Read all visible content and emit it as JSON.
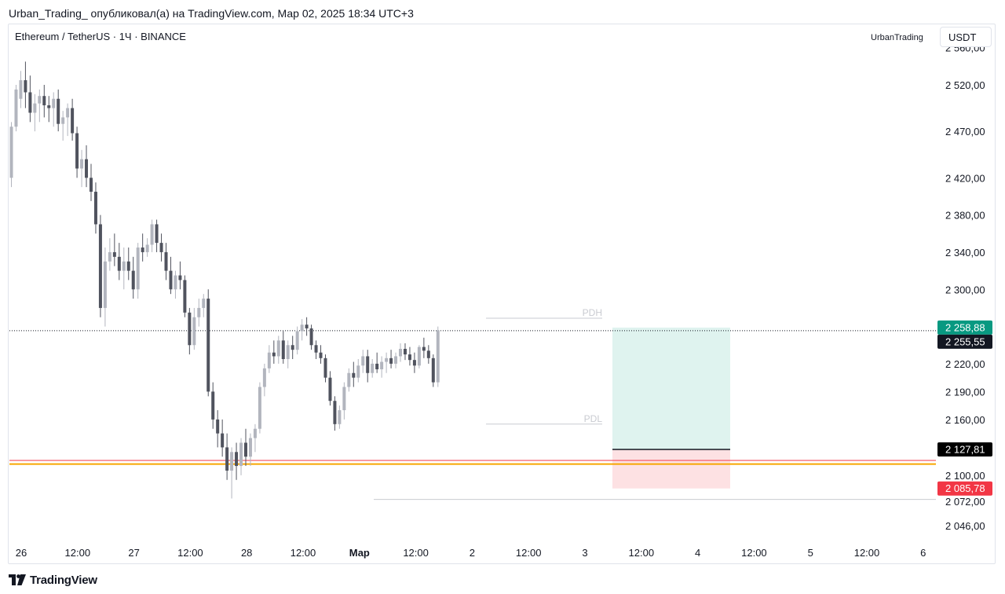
{
  "header": {
    "caption": "Urban_Trading_ опубликовал(а) на TradingView.com, Мар 02, 2025 18:34 UTC+3"
  },
  "chart_header": {
    "symbol": "Ethereum / TetherUS · 1Ч · BINANCE",
    "author": "UrbanTrading",
    "currency_button": "USDT"
  },
  "footer": {
    "logo_text": "TradingView"
  },
  "colors": {
    "up_candle": "#b2b5be",
    "down_candle": "#50535e",
    "profit_zone": "#dff3ef",
    "loss_zone": "#fde1e3",
    "entry_line": "#131722",
    "red_level": "#f23645",
    "orange_level": "#f7a600",
    "last_price_label": "#131722",
    "tp_label": "#089981",
    "sl_label": "#f23645",
    "entry_label": "#000000"
  },
  "chart_data": {
    "type": "candlestick",
    "symbol": "ETHUSDT",
    "interval": "1H",
    "y_ticks": [
      "2 560,00",
      "2 520,00",
      "2 470,00",
      "2 420,00",
      "2 380,00",
      "2 340,00",
      "2 300,00",
      "2 220,00",
      "2 190,00",
      "2 160,00",
      "2 100,00",
      "2 072,00",
      "2 046,00"
    ],
    "y_tick_values": [
      2560,
      2520,
      2470,
      2420,
      2380,
      2340,
      2300,
      2220,
      2190,
      2160,
      2100,
      2072,
      2046
    ],
    "x_ticks": [
      {
        "label": "26",
        "bold": false
      },
      {
        "label": "12:00",
        "bold": false
      },
      {
        "label": "27",
        "bold": false
      },
      {
        "label": "12:00",
        "bold": false
      },
      {
        "label": "28",
        "bold": false
      },
      {
        "label": "12:00",
        "bold": false
      },
      {
        "label": "Мар",
        "bold": true
      },
      {
        "label": "12:00",
        "bold": false
      },
      {
        "label": "2",
        "bold": false
      },
      {
        "label": "12:00",
        "bold": false
      },
      {
        "label": "3",
        "bold": false
      },
      {
        "label": "12:00",
        "bold": false
      },
      {
        "label": "4",
        "bold": false
      },
      {
        "label": "12:00",
        "bold": false
      },
      {
        "label": "5",
        "bold": false
      },
      {
        "label": "12:00",
        "bold": false
      },
      {
        "label": "6",
        "bold": false
      }
    ],
    "price_labels": [
      {
        "text": "2 258,88",
        "value": 2258.88,
        "role": "take_profit"
      },
      {
        "text": "2 255,55",
        "value": 2255.55,
        "role": "last_price"
      },
      {
        "text": "2 127,81",
        "value": 2127.81,
        "role": "entry"
      },
      {
        "text": "2 085,78",
        "value": 2085.78,
        "role": "stop_loss"
      }
    ],
    "levels": [
      {
        "name": "PDH",
        "value": 2269
      },
      {
        "name": "PDL",
        "value": 2155
      },
      {
        "name": "",
        "value": 2116,
        "role": "red_line"
      },
      {
        "name": "",
        "value": 2112,
        "role": "orange_line"
      },
      {
        "name": "",
        "value": 2074,
        "role": "low_line"
      }
    ],
    "position": {
      "type": "long",
      "take_profit": 2258.88,
      "entry": 2127.81,
      "stop_loss": 2085.78
    },
    "candles": [
      [
        2420,
        2480,
        2410,
        2475
      ],
      [
        2475,
        2520,
        2470,
        2515
      ],
      [
        2505,
        2535,
        2495,
        2525
      ],
      [
        2525,
        2545,
        2495,
        2512
      ],
      [
        2512,
        2530,
        2480,
        2490
      ],
      [
        2490,
        2510,
        2470,
        2500
      ],
      [
        2500,
        2515,
        2480,
        2508
      ],
      [
        2508,
        2520,
        2485,
        2498
      ],
      [
        2498,
        2508,
        2480,
        2495
      ],
      [
        2495,
        2512,
        2475,
        2505
      ],
      [
        2505,
        2515,
        2470,
        2478
      ],
      [
        2478,
        2492,
        2460,
        2485
      ],
      [
        2485,
        2500,
        2465,
        2495
      ],
      [
        2495,
        2505,
        2460,
        2468
      ],
      [
        2468,
        2475,
        2420,
        2430
      ],
      [
        2430,
        2450,
        2410,
        2440
      ],
      [
        2440,
        2455,
        2410,
        2420
      ],
      [
        2420,
        2435,
        2395,
        2405
      ],
      [
        2405,
        2415,
        2360,
        2370
      ],
      [
        2370,
        2380,
        2270,
        2280
      ],
      [
        2280,
        2345,
        2260,
        2330
      ],
      [
        2330,
        2355,
        2320,
        2340
      ],
      [
        2340,
        2360,
        2325,
        2335
      ],
      [
        2335,
        2350,
        2310,
        2320
      ],
      [
        2320,
        2345,
        2300,
        2330
      ],
      [
        2330,
        2345,
        2310,
        2320
      ],
      [
        2320,
        2335,
        2290,
        2300
      ],
      [
        2300,
        2350,
        2290,
        2345
      ],
      [
        2345,
        2360,
        2330,
        2340
      ],
      [
        2340,
        2355,
        2335,
        2348
      ],
      [
        2348,
        2375,
        2340,
        2370
      ],
      [
        2370,
        2375,
        2340,
        2350
      ],
      [
        2350,
        2360,
        2330,
        2340
      ],
      [
        2340,
        2350,
        2310,
        2320
      ],
      [
        2320,
        2335,
        2295,
        2300
      ],
      [
        2300,
        2320,
        2290,
        2315
      ],
      [
        2315,
        2330,
        2300,
        2310
      ],
      [
        2310,
        2315,
        2270,
        2275
      ],
      [
        2275,
        2280,
        2230,
        2240
      ],
      [
        2240,
        2280,
        2235,
        2270
      ],
      [
        2270,
        2290,
        2260,
        2280
      ],
      [
        2280,
        2295,
        2270,
        2290
      ],
      [
        2290,
        2300,
        2185,
        2190
      ],
      [
        2190,
        2200,
        2150,
        2160
      ],
      [
        2160,
        2170,
        2130,
        2145
      ],
      [
        2145,
        2160,
        2120,
        2130
      ],
      [
        2130,
        2145,
        2095,
        2105
      ],
      [
        2105,
        2130,
        2075,
        2125
      ],
      [
        2125,
        2135,
        2095,
        2110
      ],
      [
        2110,
        2140,
        2100,
        2135
      ],
      [
        2135,
        2150,
        2110,
        2120
      ],
      [
        2120,
        2145,
        2110,
        2140
      ],
      [
        2140,
        2155,
        2125,
        2150
      ],
      [
        2150,
        2200,
        2145,
        2195
      ],
      [
        2195,
        2220,
        2185,
        2215
      ],
      [
        2215,
        2240,
        2210,
        2232
      ],
      [
        2232,
        2245,
        2220,
        2228
      ],
      [
        2228,
        2250,
        2220,
        2245
      ],
      [
        2245,
        2255,
        2220,
        2225
      ],
      [
        2225,
        2245,
        2215,
        2240
      ],
      [
        2240,
        2250,
        2225,
        2235
      ],
      [
        2235,
        2260,
        2230,
        2255
      ],
      [
        2255,
        2268,
        2245,
        2262
      ],
      [
        2262,
        2270,
        2250,
        2258
      ],
      [
        2258,
        2262,
        2235,
        2240
      ],
      [
        2240,
        2245,
        2225,
        2232
      ],
      [
        2232,
        2240,
        2220,
        2226
      ],
      [
        2226,
        2230,
        2200,
        2205
      ],
      [
        2205,
        2212,
        2175,
        2180
      ],
      [
        2180,
        2185,
        2148,
        2155
      ],
      [
        2155,
        2175,
        2150,
        2170
      ],
      [
        2170,
        2200,
        2160,
        2195
      ],
      [
        2195,
        2215,
        2190,
        2210
      ],
      [
        2210,
        2222,
        2195,
        2205
      ],
      [
        2205,
        2225,
        2200,
        2218
      ],
      [
        2218,
        2235,
        2210,
        2228
      ],
      [
        2228,
        2235,
        2200,
        2210
      ],
      [
        2210,
        2225,
        2205,
        2220
      ],
      [
        2220,
        2232,
        2210,
        2214
      ],
      [
        2214,
        2228,
        2205,
        2222
      ],
      [
        2222,
        2232,
        2210,
        2226
      ],
      [
        2226,
        2235,
        2215,
        2220
      ],
      [
        2220,
        2232,
        2215,
        2228
      ],
      [
        2228,
        2242,
        2222,
        2236
      ],
      [
        2236,
        2242,
        2224,
        2230
      ],
      [
        2230,
        2238,
        2218,
        2224
      ],
      [
        2224,
        2232,
        2210,
        2218
      ],
      [
        2218,
        2240,
        2215,
        2238
      ],
      [
        2238,
        2248,
        2226,
        2234
      ],
      [
        2234,
        2240,
        2220,
        2226
      ],
      [
        2226,
        2230,
        2195,
        2200
      ],
      [
        2200,
        2260,
        2195,
        2256
      ]
    ]
  }
}
